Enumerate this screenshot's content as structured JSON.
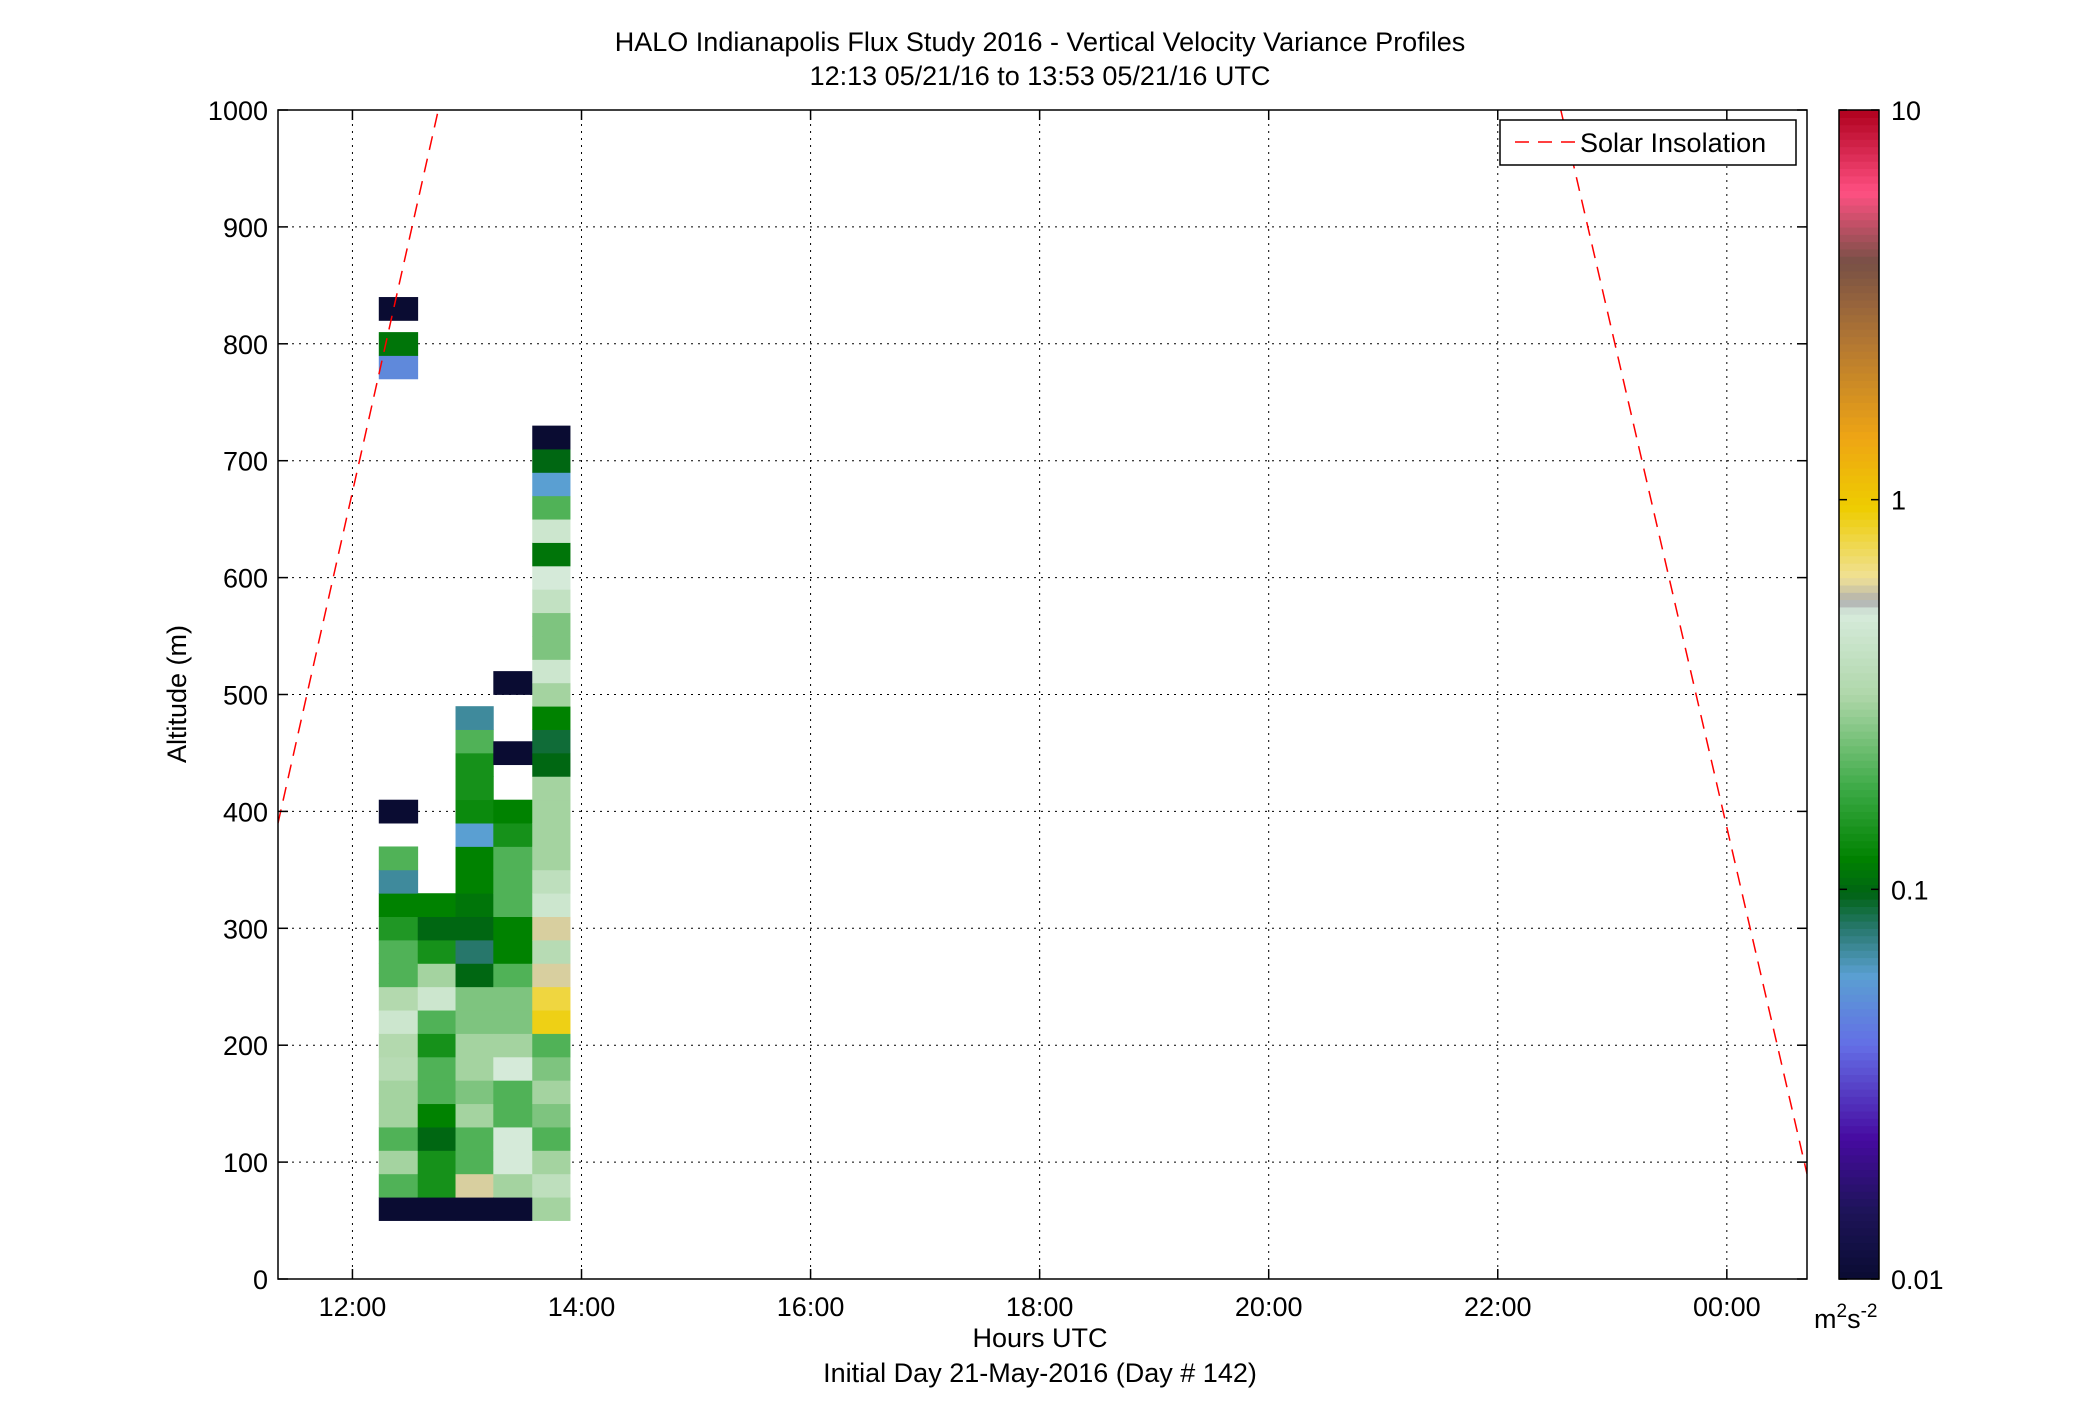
{
  "chart_data": {
    "type": "heatmap",
    "title": "HALO Indianapolis Flux Study 2016 - Vertical Velocity Variance Profiles",
    "subtitle": "12:13 05/21/16 to 13:53 05/21/16  UTC",
    "xlabel": "Hours UTC",
    "xlabel2": "Initial Day 21-May-2016 (Day # 142)",
    "ylabel": "Altitude (m)",
    "xlim": [
      11.35,
      24.7
    ],
    "ylim": [
      0,
      1000
    ],
    "x_ticks": [
      12,
      14,
      16,
      18,
      20,
      22,
      24
    ],
    "x_tick_labels": [
      "12:00",
      "14:00",
      "16:00",
      "18:00",
      "20:00",
      "22:00",
      "00:00"
    ],
    "y_ticks": [
      0,
      100,
      200,
      300,
      400,
      500,
      600,
      700,
      800,
      900,
      1000
    ],
    "y_tick_labels": [
      "0",
      "100",
      "200",
      "300",
      "400",
      "500",
      "600",
      "700",
      "800",
      "900",
      "1000"
    ],
    "grid": true,
    "legend": {
      "placement": "top-right",
      "entries": [
        "Solar Insolation"
      ]
    },
    "colorbar": {
      "scale": "log",
      "range": [
        0.01,
        10
      ],
      "tick_labels": [
        "10",
        "1",
        "0.1",
        "0.01"
      ],
      "tick_values": [
        10,
        1,
        0.1,
        0.01
      ],
      "units": "m²s⁻²",
      "unit_base": "m",
      "unit_sup1": "2",
      "unit_mid": "s",
      "unit_sup2": "-2"
    },
    "cell_height_m": 20,
    "columns": [
      {
        "time_start": 12.23,
        "time_end": 12.57,
        "cells": [
          [
            50,
            0.01
          ],
          [
            70,
            0.2
          ],
          [
            90,
            0.3
          ],
          [
            110,
            0.2
          ],
          [
            130,
            0.3
          ],
          [
            150,
            0.3
          ],
          [
            170,
            0.35
          ],
          [
            190,
            0.33
          ],
          [
            210,
            0.45
          ],
          [
            230,
            0.33
          ],
          [
            250,
            0.2
          ],
          [
            270,
            0.2
          ],
          [
            290,
            0.15
          ],
          [
            310,
            0.12
          ],
          [
            330,
            0.07
          ],
          [
            350,
            0.2
          ],
          [
            390,
            0.01
          ],
          [
            770,
            0.05
          ],
          [
            790,
            0.11
          ],
          [
            820,
            0.01
          ]
        ]
      },
      {
        "time_start": 12.57,
        "time_end": 12.9,
        "cells": [
          [
            50,
            0.01
          ],
          [
            70,
            0.14
          ],
          [
            90,
            0.14
          ],
          [
            110,
            0.1
          ],
          [
            130,
            0.12
          ],
          [
            150,
            0.2
          ],
          [
            170,
            0.2
          ],
          [
            190,
            0.14
          ],
          [
            210,
            0.2
          ],
          [
            230,
            0.45
          ],
          [
            250,
            0.3
          ],
          [
            270,
            0.14
          ],
          [
            290,
            0.1
          ],
          [
            310,
            0.12
          ]
        ]
      },
      {
        "time_start": 12.9,
        "time_end": 13.23,
        "cells": [
          [
            50,
            0.01
          ],
          [
            70,
            0.6
          ],
          [
            90,
            0.2
          ],
          [
            110,
            0.2
          ],
          [
            130,
            0.3
          ],
          [
            150,
            0.25
          ],
          [
            170,
            0.3
          ],
          [
            190,
            0.3
          ],
          [
            210,
            0.25
          ],
          [
            230,
            0.25
          ],
          [
            250,
            0.1
          ],
          [
            270,
            0.08
          ],
          [
            290,
            0.1
          ],
          [
            310,
            0.11
          ],
          [
            330,
            0.12
          ],
          [
            350,
            0.12
          ],
          [
            370,
            0.06
          ],
          [
            390,
            0.13
          ],
          [
            410,
            0.14
          ],
          [
            430,
            0.14
          ],
          [
            450,
            0.2
          ],
          [
            470,
            0.07
          ]
        ]
      },
      {
        "time_start": 13.23,
        "time_end": 13.57,
        "cells": [
          [
            50,
            0.01
          ],
          [
            70,
            0.3
          ],
          [
            90,
            0.5
          ],
          [
            110,
            0.5
          ],
          [
            130,
            0.2
          ],
          [
            150,
            0.2
          ],
          [
            170,
            0.5
          ],
          [
            190,
            0.3
          ],
          [
            210,
            0.25
          ],
          [
            230,
            0.25
          ],
          [
            250,
            0.2
          ],
          [
            270,
            0.12
          ],
          [
            290,
            0.12
          ],
          [
            310,
            0.2
          ],
          [
            330,
            0.2
          ],
          [
            350,
            0.2
          ],
          [
            370,
            0.14
          ],
          [
            390,
            0.12
          ],
          [
            440,
            0.01
          ],
          [
            500,
            0.01
          ]
        ]
      },
      {
        "time_start": 13.57,
        "time_end": 13.9,
        "cells": [
          [
            50,
            0.3
          ],
          [
            70,
            0.38
          ],
          [
            90,
            0.3
          ],
          [
            110,
            0.2
          ],
          [
            130,
            0.25
          ],
          [
            150,
            0.3
          ],
          [
            170,
            0.25
          ],
          [
            190,
            0.2
          ],
          [
            210,
            0.9
          ],
          [
            230,
            0.8
          ],
          [
            250,
            0.6
          ],
          [
            270,
            0.35
          ],
          [
            290,
            0.6
          ],
          [
            310,
            0.45
          ],
          [
            330,
            0.38
          ],
          [
            350,
            0.3
          ],
          [
            370,
            0.3
          ],
          [
            390,
            0.3
          ],
          [
            410,
            0.3
          ],
          [
            430,
            0.1
          ],
          [
            450,
            0.09
          ],
          [
            470,
            0.12
          ],
          [
            490,
            0.3
          ],
          [
            510,
            0.45
          ],
          [
            530,
            0.25
          ],
          [
            550,
            0.25
          ],
          [
            570,
            0.4
          ],
          [
            590,
            0.5
          ],
          [
            610,
            0.11
          ],
          [
            630,
            0.45
          ],
          [
            650,
            0.2
          ],
          [
            670,
            0.06
          ],
          [
            690,
            0.1
          ],
          [
            710,
            0.01
          ]
        ]
      }
    ],
    "series": [
      {
        "name": "Solar Insolation",
        "style": "dashed",
        "color": "#ff0000",
        "segments": [
          [
            [
              11.35,
              390
            ],
            [
              12.75,
              1000
            ]
          ],
          [
            [
              22.55,
              1000
            ],
            [
              24.7,
              90
            ]
          ]
        ]
      }
    ]
  }
}
